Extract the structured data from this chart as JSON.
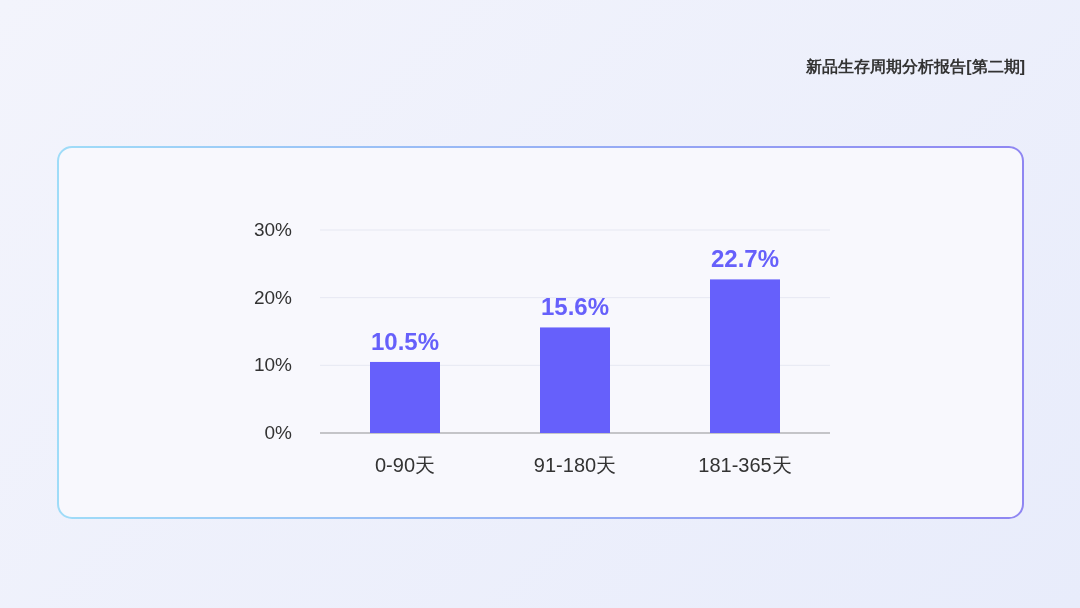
{
  "chart_data": {
    "type": "bar",
    "title": "新品生存周期分析报告[第二期]",
    "categories": [
      "0-90天",
      "91-180天",
      "181-365天"
    ],
    "values": [
      10.5,
      15.6,
      22.7
    ],
    "value_labels": [
      "10.5%",
      "15.6%",
      "22.7%"
    ],
    "color": "#6660fb",
    "ylim": [
      0,
      30
    ],
    "yticks": [
      {
        "value": 0,
        "label": "0%"
      },
      {
        "value": 10,
        "label": "10%"
      },
      {
        "value": 20,
        "label": "20%"
      },
      {
        "value": 30,
        "label": "30%"
      }
    ],
    "grid": "y"
  }
}
